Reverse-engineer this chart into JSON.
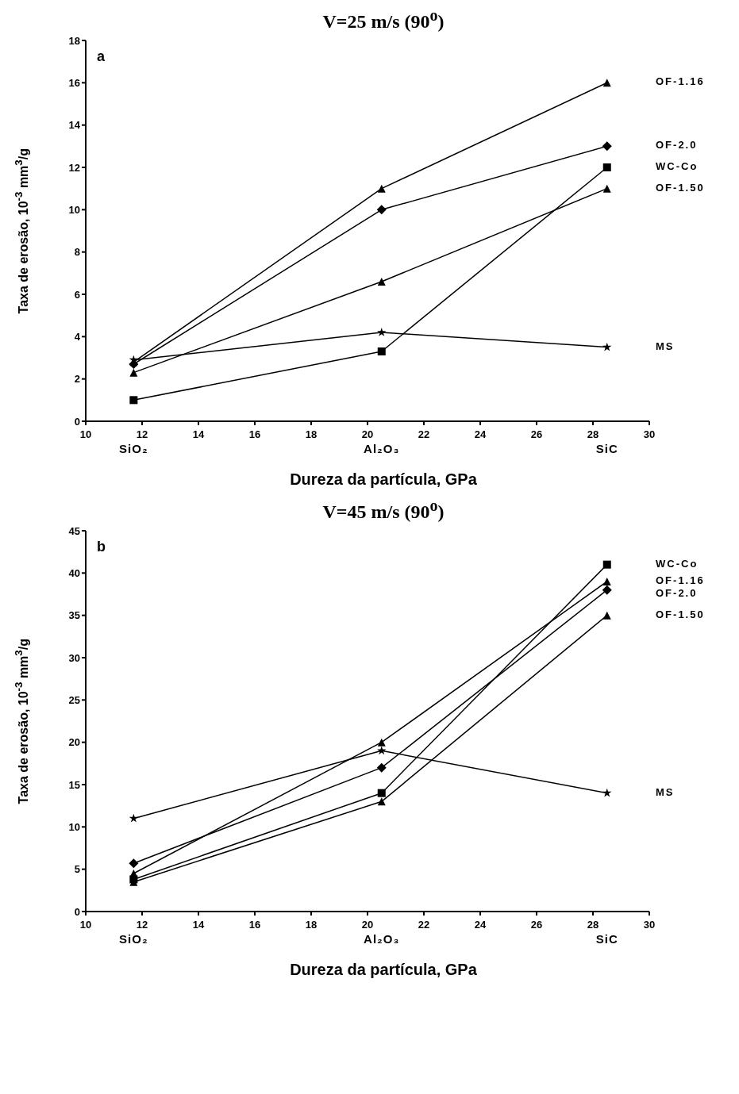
{
  "chart_data": [
    {
      "type": "line",
      "title": "V=25 m/s (90$^{o}$)",
      "xlabel": "Dureza da partícula, GPa",
      "ylabel": "Taxa de erosão, 10$^{-3}$ mm$^{3}$/g",
      "x": [
        11.7,
        20.5,
        28.5
      ],
      "xlim": [
        10,
        30
      ],
      "xticks": [
        10,
        12,
        14,
        16,
        18,
        20,
        22,
        24,
        26,
        28,
        30
      ],
      "ylim": [
        0,
        18
      ],
      "yticks": [
        0,
        2,
        4,
        6,
        8,
        10,
        12,
        14,
        16,
        18
      ],
      "series": [
        {
          "name": "OF-1.16",
          "color": "#000000",
          "marker": "triangle",
          "values": [
            2.8,
            11,
            16
          ]
        },
        {
          "name": "OF-2.0",
          "color": "#000000",
          "marker": "diamond",
          "values": [
            2.7,
            10,
            13
          ]
        },
        {
          "name": "WC-Co",
          "color": "#000000",
          "marker": "square",
          "values": [
            1.0,
            3.3,
            12
          ]
        },
        {
          "name": "OF-1.50",
          "color": "#000000",
          "marker": "triangle",
          "values": [
            2.3,
            6.6,
            11
          ]
        },
        {
          "name": "MS",
          "color": "#000000",
          "marker": "star",
          "values": [
            2.9,
            4.2,
            3.5
          ]
        }
      ],
      "annotations": [
        "a",
        "SiO₂",
        "Al₂O₃",
        "SiC"
      ]
    },
    {
      "type": "line",
      "title": "V=45 m/s (90$^{o}$)",
      "xlabel": "Dureza da partícula, GPa",
      "ylabel": "Taxa de erosão, 10$^{-3}$ mm$^{3}$/g",
      "x": [
        11.7,
        20.5,
        28.5
      ],
      "xlim": [
        10,
        30
      ],
      "xticks": [
        10,
        12,
        14,
        16,
        18,
        20,
        22,
        24,
        26,
        28,
        30
      ],
      "ylim": [
        0,
        45
      ],
      "yticks": [
        0,
        5,
        10,
        15,
        20,
        25,
        30,
        35,
        40,
        45
      ],
      "series": [
        {
          "name": "OF-1.16",
          "color": "#000000",
          "marker": "triangle",
          "values": [
            4.5,
            20,
            39
          ]
        },
        {
          "name": "OF-2.0",
          "color": "#000000",
          "marker": "diamond",
          "values": [
            5.7,
            17,
            38
          ]
        },
        {
          "name": "WC-Co",
          "color": "#000000",
          "marker": "square",
          "values": [
            3.8,
            14,
            41
          ]
        },
        {
          "name": "OF-1.50",
          "color": "#000000",
          "marker": "triangle",
          "values": [
            3.5,
            13,
            35
          ]
        },
        {
          "name": "MS",
          "color": "#000000",
          "marker": "star",
          "values": [
            11,
            19,
            14
          ]
        }
      ],
      "annotations": [
        "b",
        "SiO₂",
        "Al₂O₃",
        "SiC"
      ]
    }
  ]
}
